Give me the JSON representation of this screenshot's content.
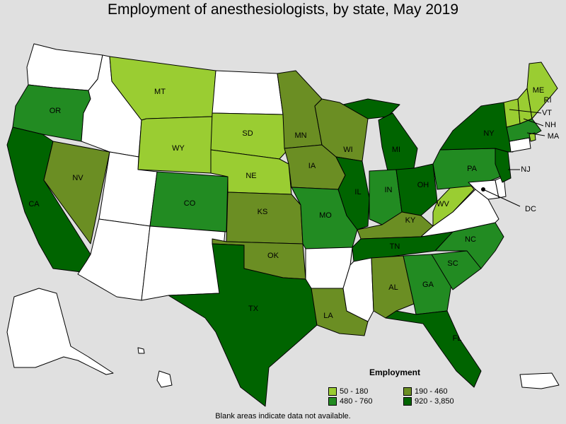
{
  "title": "Employment of anesthesiologists, by state, May 2019",
  "footnote": "Blank areas indicate data not available.",
  "legend": {
    "title": "Employment",
    "items": [
      {
        "label": "50 - 180",
        "color": "#9acd32"
      },
      {
        "label": "190 - 460",
        "color": "#6b8e23"
      },
      {
        "label": "480 - 760",
        "color": "#228b22"
      },
      {
        "label": "920 - 3,850",
        "color": "#006400"
      }
    ]
  },
  "colors": {
    "no_data": "#ffffff",
    "background": "#e0e0e0"
  },
  "states": {
    "OR": {
      "label": "OR",
      "class": 3
    },
    "CA": {
      "label": "CA",
      "class": 4
    },
    "NV": {
      "label": "NV",
      "class": 2
    },
    "MT": {
      "label": "MT",
      "class": 1
    },
    "WY": {
      "label": "WY",
      "class": 1
    },
    "CO": {
      "label": "CO",
      "class": 3
    },
    "SD": {
      "label": "SD",
      "class": 1
    },
    "NE": {
      "label": "NE",
      "class": 1
    },
    "KS": {
      "label": "KS",
      "class": 2
    },
    "OK": {
      "label": "OK",
      "class": 2
    },
    "TX": {
      "label": "TX",
      "class": 4
    },
    "MN": {
      "label": "MN",
      "class": 2
    },
    "IA": {
      "label": "IA",
      "class": 2
    },
    "MO": {
      "label": "MO",
      "class": 3
    },
    "LA": {
      "label": "LA",
      "class": 2
    },
    "WI": {
      "label": "WI",
      "class": 2
    },
    "IL": {
      "label": "IL",
      "class": 4
    },
    "MI": {
      "label": "MI",
      "class": 4
    },
    "IN": {
      "label": "IN",
      "class": 3
    },
    "OH": {
      "label": "OH",
      "class": 4
    },
    "KY": {
      "label": "KY",
      "class": 2
    },
    "TN": {
      "label": "TN",
      "class": 4
    },
    "AL": {
      "label": "AL",
      "class": 2
    },
    "GA": {
      "label": "GA",
      "class": 3
    },
    "FL": {
      "label": "FL",
      "class": 4
    },
    "SC": {
      "label": "SC",
      "class": 3
    },
    "NC": {
      "label": "NC",
      "class": 3
    },
    "WV": {
      "label": "WV",
      "class": 1
    },
    "PA": {
      "label": "PA",
      "class": 3
    },
    "NY": {
      "label": "NY",
      "class": 4
    },
    "NJ": {
      "label": "NJ",
      "class": 4
    },
    "VT": {
      "label": "VT",
      "class": 1
    },
    "NH": {
      "label": "NH",
      "class": 1
    },
    "ME": {
      "label": "ME",
      "class": 1
    },
    "MA": {
      "label": "MA",
      "class": 3
    },
    "RI": {
      "label": "RI",
      "class": 1
    },
    "CT": {
      "label": "",
      "class": 0
    },
    "DC": {
      "label": "DC",
      "class": 0
    },
    "WA": {
      "label": "",
      "class": 0
    },
    "ID": {
      "label": "",
      "class": 0
    },
    "UT": {
      "label": "",
      "class": 0
    },
    "AZ": {
      "label": "",
      "class": 0
    },
    "NM": {
      "label": "",
      "class": 0
    },
    "ND": {
      "label": "",
      "class": 0
    },
    "AR": {
      "label": "",
      "class": 0
    },
    "MS": {
      "label": "",
      "class": 0
    },
    "VA": {
      "label": "",
      "class": 0
    },
    "MD": {
      "label": "",
      "class": 0
    },
    "DE": {
      "label": "",
      "class": 0
    },
    "AK": {
      "label": "",
      "class": 0
    },
    "HI": {
      "label": "",
      "class": 0
    },
    "PR": {
      "label": "",
      "class": 0
    }
  }
}
